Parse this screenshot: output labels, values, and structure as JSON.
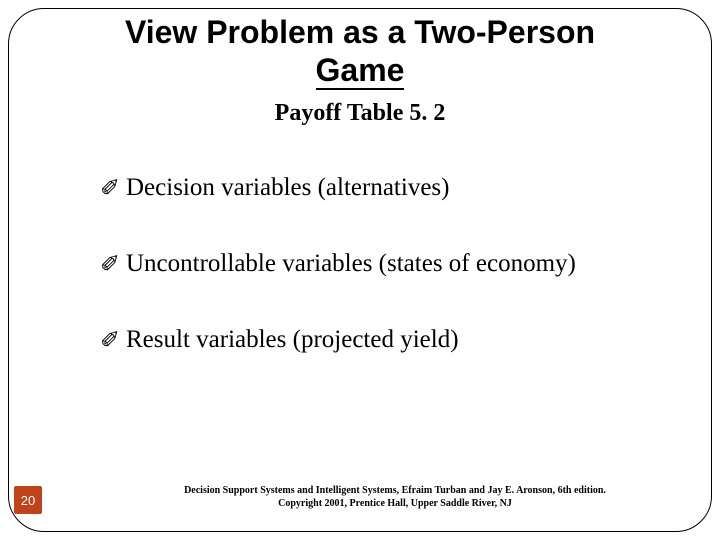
{
  "title_line1": "View Problem as a Two-Person",
  "title_line2": "Game",
  "subtitle": "Payoff Table 5. 2",
  "bullets": [
    "Decision variables (alternatives)",
    "Uncontrollable variables (states of economy)",
    "Result variables (projected yield)"
  ],
  "bullet_glyph": "✐",
  "footer_line1": "Decision Support Systems and Intelligent Systems, Efraim Turban and Jay E. Aronson, 6th edition.",
  "footer_line2": "Copyright 2001, Prentice Hall, Upper Saddle River, NJ",
  "page_number": "20",
  "colors": {
    "pagenum_bg": "#c0431c",
    "pagenum_fg": "#ffffff",
    "text": "#000000",
    "background": "#ffffff"
  }
}
